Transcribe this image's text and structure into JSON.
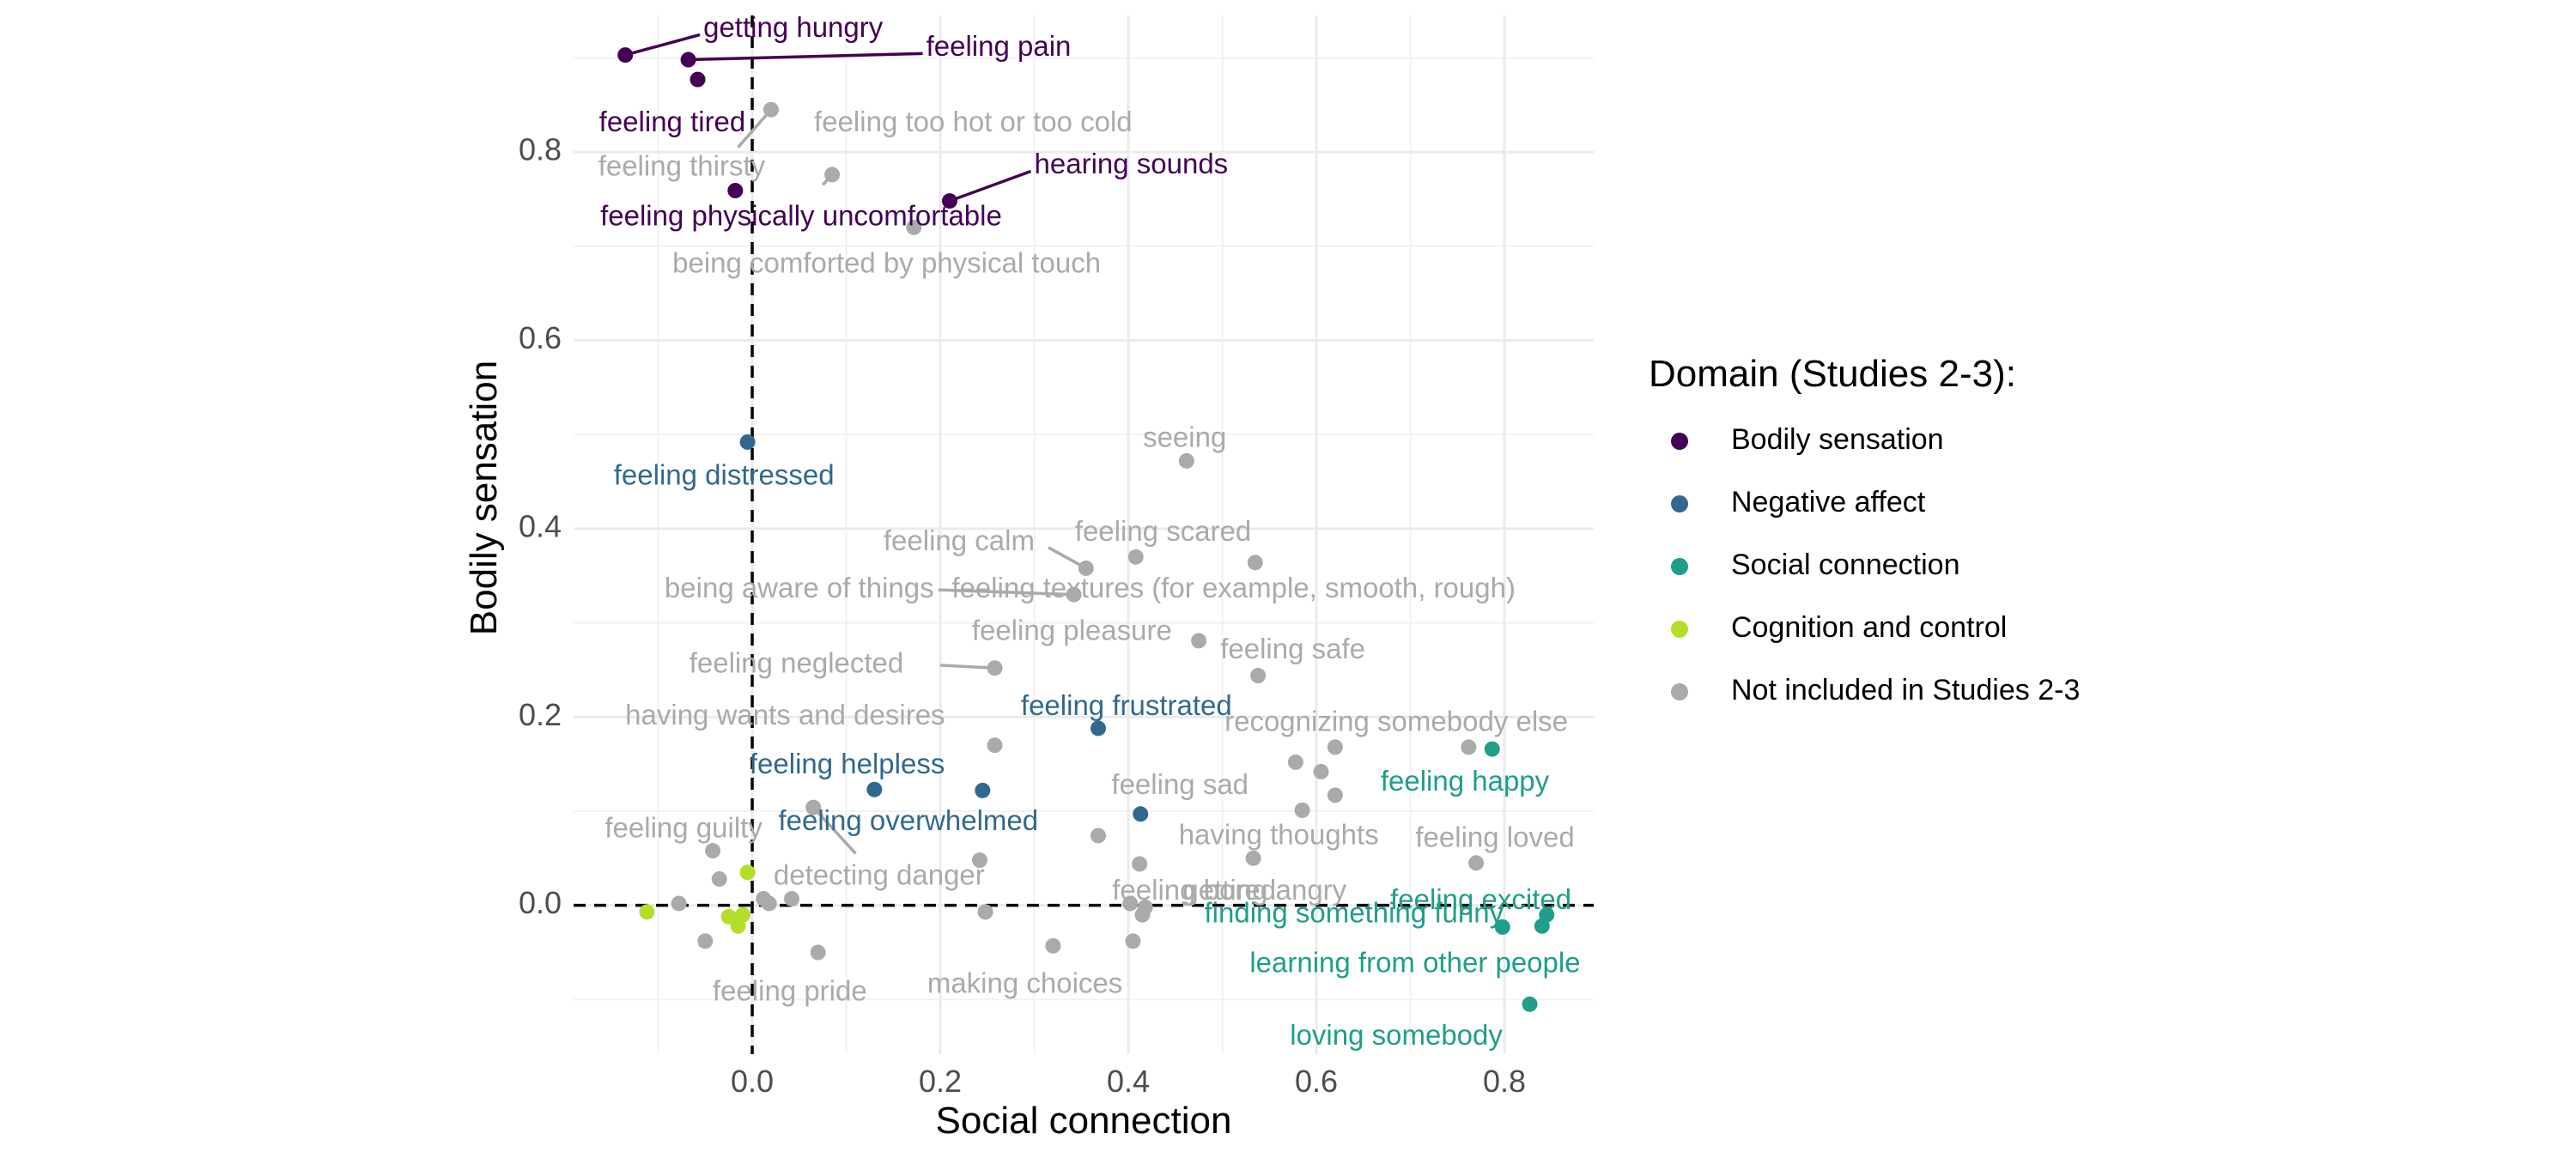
{
  "chart_data": {
    "type": "scatter",
    "title": "",
    "xlabel": "Social connection",
    "ylabel": "Bodily sensation",
    "xlim": [
      -0.19,
      0.895
    ],
    "ylim": [
      -0.158,
      0.945
    ],
    "x_ticks": [
      0.0,
      0.2,
      0.4,
      0.6,
      0.8
    ],
    "y_ticks": [
      0.0,
      0.2,
      0.4,
      0.6,
      0.8
    ],
    "x_tick_labels": [
      "0.0",
      "0.2",
      "0.4",
      "0.6",
      "0.8"
    ],
    "y_tick_labels": [
      "0.0",
      "0.2",
      "0.4",
      "0.6",
      "0.8"
    ],
    "grid": true,
    "reference_lines": {
      "x": 0.0,
      "y": 0.0,
      "style": "dashed"
    },
    "legend": {
      "title": "Domain (Studies 2-3):",
      "position": "right",
      "entries": [
        {
          "key": "bodily",
          "label": "Bodily sensation",
          "color": "#440154"
        },
        {
          "key": "negative",
          "label": "Negative affect",
          "color": "#31688E"
        },
        {
          "key": "social",
          "label": "Social connection",
          "color": "#1F9E89"
        },
        {
          "key": "cognition",
          "label": "Cognition and control",
          "color": "#B5DE2B"
        },
        {
          "key": "other",
          "label": "Not included in Studies 2-3",
          "color": "#AAAAAA"
        }
      ]
    },
    "points": [
      {
        "x": -0.135,
        "y": 0.903,
        "group": "bodily"
      },
      {
        "x": -0.068,
        "y": 0.898,
        "group": "bodily"
      },
      {
        "x": -0.058,
        "y": 0.877,
        "group": "bodily"
      },
      {
        "x": -0.018,
        "y": 0.759,
        "group": "bodily"
      },
      {
        "x": 0.21,
        "y": 0.748,
        "group": "bodily"
      },
      {
        "x": 0.02,
        "y": 0.845,
        "group": "other"
      },
      {
        "x": 0.085,
        "y": 0.776,
        "group": "other"
      },
      {
        "x": 0.172,
        "y": 0.72,
        "group": "other"
      },
      {
        "x": 0.462,
        "y": 0.472,
        "group": "other"
      },
      {
        "x": 0.408,
        "y": 0.37,
        "group": "other"
      },
      {
        "x": 0.535,
        "y": 0.364,
        "group": "other"
      },
      {
        "x": 0.355,
        "y": 0.358,
        "group": "other"
      },
      {
        "x": 0.342,
        "y": 0.33,
        "group": "other"
      },
      {
        "x": 0.475,
        "y": 0.281,
        "group": "other"
      },
      {
        "x": 0.258,
        "y": 0.252,
        "group": "other"
      },
      {
        "x": 0.538,
        "y": 0.244,
        "group": "other"
      },
      {
        "x": 0.258,
        "y": 0.17,
        "group": "other"
      },
      {
        "x": 0.62,
        "y": 0.168,
        "group": "other"
      },
      {
        "x": 0.762,
        "y": 0.168,
        "group": "other"
      },
      {
        "x": 0.578,
        "y": 0.152,
        "group": "other"
      },
      {
        "x": 0.605,
        "y": 0.142,
        "group": "other"
      },
      {
        "x": 0.62,
        "y": 0.117,
        "group": "other"
      },
      {
        "x": 0.585,
        "y": 0.101,
        "group": "other"
      },
      {
        "x": 0.065,
        "y": 0.104,
        "group": "other"
      },
      {
        "x": 0.368,
        "y": 0.074,
        "group": "other"
      },
      {
        "x": -0.042,
        "y": 0.058,
        "group": "other"
      },
      {
        "x": -0.035,
        "y": 0.028,
        "group": "other"
      },
      {
        "x": 0.242,
        "y": 0.048,
        "group": "other"
      },
      {
        "x": 0.533,
        "y": 0.05,
        "group": "other"
      },
      {
        "x": 0.412,
        "y": 0.044,
        "group": "other"
      },
      {
        "x": 0.77,
        "y": 0.045,
        "group": "other"
      },
      {
        "x": 0.042,
        "y": 0.007,
        "group": "other"
      },
      {
        "x": 0.012,
        "y": 0.007,
        "group": "other"
      },
      {
        "x": 0.018,
        "y": 0.002,
        "group": "other"
      },
      {
        "x": -0.078,
        "y": 0.002,
        "group": "other"
      },
      {
        "x": 0.402,
        "y": 0.002,
        "group": "other"
      },
      {
        "x": 0.418,
        "y": -0.002,
        "group": "other"
      },
      {
        "x": 0.415,
        "y": -0.01,
        "group": "other"
      },
      {
        "x": 0.248,
        "y": -0.007,
        "group": "other"
      },
      {
        "x": -0.05,
        "y": -0.038,
        "group": "other"
      },
      {
        "x": 0.07,
        "y": -0.05,
        "group": "other"
      },
      {
        "x": 0.32,
        "y": -0.043,
        "group": "other"
      },
      {
        "x": 0.405,
        "y": -0.038,
        "group": "other"
      },
      {
        "x": -0.005,
        "y": 0.492,
        "group": "negative"
      },
      {
        "x": 0.368,
        "y": 0.188,
        "group": "negative"
      },
      {
        "x": 0.13,
        "y": 0.123,
        "group": "negative"
      },
      {
        "x": 0.245,
        "y": 0.122,
        "group": "negative"
      },
      {
        "x": 0.413,
        "y": 0.097,
        "group": "negative"
      },
      {
        "x": 0.787,
        "y": 0.166,
        "group": "social"
      },
      {
        "x": 0.845,
        "y": -0.01,
        "group": "social"
      },
      {
        "x": 0.798,
        "y": -0.023,
        "group": "social"
      },
      {
        "x": 0.84,
        "y": -0.022,
        "group": "social"
      },
      {
        "x": 0.827,
        "y": -0.105,
        "group": "social"
      },
      {
        "x": -0.005,
        "y": 0.035,
        "group": "cognition"
      },
      {
        "x": -0.112,
        "y": -0.007,
        "group": "cognition"
      },
      {
        "x": -0.025,
        "y": -0.012,
        "group": "cognition"
      },
      {
        "x": -0.01,
        "y": -0.01,
        "group": "cognition"
      },
      {
        "x": -0.015,
        "y": -0.022,
        "group": "cognition"
      }
    ],
    "labels": [
      {
        "text": "getting hungry",
        "group": "bodily",
        "x": -0.052,
        "y": 0.93,
        "anchor": "start",
        "line_to": [
          -0.135,
          0.903
        ]
      },
      {
        "text": "feeling pain",
        "group": "bodily",
        "x": 0.185,
        "y": 0.91,
        "anchor": "start",
        "line_to": [
          -0.068,
          0.898
        ]
      },
      {
        "text": "feeling tired",
        "group": "bodily",
        "x": -0.085,
        "y": 0.83,
        "anchor": "middle"
      },
      {
        "text": "feeling thirsty",
        "group": "other",
        "x": -0.075,
        "y": 0.783,
        "anchor": "middle"
      },
      {
        "text": "feeling too hot or too cold",
        "group": "other",
        "x": 0.235,
        "y": 0.83,
        "anchor": "middle"
      },
      {
        "text": "hearing sounds",
        "group": "bodily",
        "x": 0.3,
        "y": 0.785,
        "anchor": "start",
        "line_to": [
          0.21,
          0.748
        ]
      },
      {
        "text": "feeling physically uncomfortable",
        "group": "bodily",
        "x": 0.052,
        "y": 0.73,
        "anchor": "middle"
      },
      {
        "text": "being comforted by physical touch",
        "group": "other",
        "x": 0.143,
        "y": 0.68,
        "anchor": "middle"
      },
      {
        "text": "seeing",
        "group": "other",
        "x": 0.46,
        "y": 0.495,
        "anchor": "middle"
      },
      {
        "text": "feeling distressed",
        "group": "negative",
        "x": -0.03,
        "y": 0.455,
        "anchor": "middle"
      },
      {
        "text": "feeling calm",
        "group": "other",
        "x": 0.22,
        "y": 0.385,
        "anchor": "middle"
      },
      {
        "text": "feeling scared",
        "group": "other",
        "x": 0.437,
        "y": 0.395,
        "anchor": "middle"
      },
      {
        "text": "being aware of things",
        "group": "other",
        "x": 0.05,
        "y": 0.335,
        "anchor": "middle"
      },
      {
        "text": "feeling textures (for example, smooth, rough)",
        "group": "other",
        "x": 0.512,
        "y": 0.335,
        "anchor": "middle"
      },
      {
        "text": "feeling pleasure",
        "group": "other",
        "x": 0.34,
        "y": 0.29,
        "anchor": "middle"
      },
      {
        "text": "feeling safe",
        "group": "other",
        "x": 0.575,
        "y": 0.27,
        "anchor": "middle"
      },
      {
        "text": "feeling neglected",
        "group": "other",
        "x": 0.047,
        "y": 0.255,
        "anchor": "middle"
      },
      {
        "text": "feeling frustrated",
        "group": "negative",
        "x": 0.398,
        "y": 0.21,
        "anchor": "middle"
      },
      {
        "text": "having wants and desires",
        "group": "other",
        "x": 0.035,
        "y": 0.2,
        "anchor": "middle"
      },
      {
        "text": "recognizing somebody else",
        "group": "other",
        "x": 0.685,
        "y": 0.193,
        "anchor": "middle"
      },
      {
        "text": "feeling helpless",
        "group": "negative",
        "x": 0.101,
        "y": 0.148,
        "anchor": "middle"
      },
      {
        "text": "feeling happy",
        "group": "social",
        "x": 0.758,
        "y": 0.13,
        "anchor": "middle"
      },
      {
        "text": "feeling sad",
        "group": "other",
        "x": 0.455,
        "y": 0.126,
        "anchor": "middle"
      },
      {
        "text": "feeling overwhelmed",
        "group": "negative",
        "x": 0.166,
        "y": 0.088,
        "anchor": "middle"
      },
      {
        "text": "having thoughts",
        "group": "other",
        "x": 0.56,
        "y": 0.073,
        "anchor": "middle"
      },
      {
        "text": "feeling loved",
        "group": "other",
        "x": 0.79,
        "y": 0.07,
        "anchor": "middle"
      },
      {
        "text": "feeling guilty",
        "group": "other",
        "x": -0.073,
        "y": 0.08,
        "anchor": "middle"
      },
      {
        "text": "detecting danger",
        "group": "other",
        "x": 0.135,
        "y": 0.03,
        "anchor": "middle"
      },
      {
        "text": "feeling bored",
        "group": "other",
        "x": 0.47,
        "y": 0.014,
        "anchor": "middle"
      },
      {
        "text": "getting angry",
        "group": "other",
        "x": 0.545,
        "y": 0.014,
        "anchor": "middle"
      },
      {
        "text": "feeling excited",
        "group": "social",
        "x": 0.775,
        "y": 0.004,
        "anchor": "middle"
      },
      {
        "text": "finding something funny",
        "group": "social",
        "x": 0.64,
        "y": -0.01,
        "anchor": "middle"
      },
      {
        "text": "learning from other people",
        "group": "social",
        "x": 0.705,
        "y": -0.063,
        "anchor": "middle"
      },
      {
        "text": "feeling pride",
        "group": "other",
        "x": 0.04,
        "y": -0.093,
        "anchor": "middle"
      },
      {
        "text": "making choices",
        "group": "other",
        "x": 0.29,
        "y": -0.085,
        "anchor": "middle"
      },
      {
        "text": "loving somebody",
        "group": "social",
        "x": 0.685,
        "y": -0.14,
        "anchor": "middle"
      }
    ],
    "connectors": [
      {
        "group": "other",
        "from": [
          -0.015,
          0.805
        ],
        "to": [
          0.02,
          0.845
        ]
      },
      {
        "group": "other",
        "from": [
          0.075,
          0.765
        ],
        "to": [
          0.085,
          0.776
        ]
      },
      {
        "group": "other",
        "from": [
          0.315,
          0.38
        ],
        "to": [
          0.355,
          0.358
        ]
      },
      {
        "group": "other",
        "from": [
          0.198,
          0.335
        ],
        "to": [
          0.342,
          0.33
        ]
      },
      {
        "group": "other",
        "from": [
          0.2,
          0.255
        ],
        "to": [
          0.258,
          0.252
        ]
      },
      {
        "group": "other",
        "from": [
          0.11,
          0.055
        ],
        "to": [
          0.065,
          0.104
        ]
      },
      {
        "group": "other",
        "from": [
          0.075,
          0.095
        ],
        "to": [
          0.065,
          0.104
        ]
      }
    ]
  }
}
